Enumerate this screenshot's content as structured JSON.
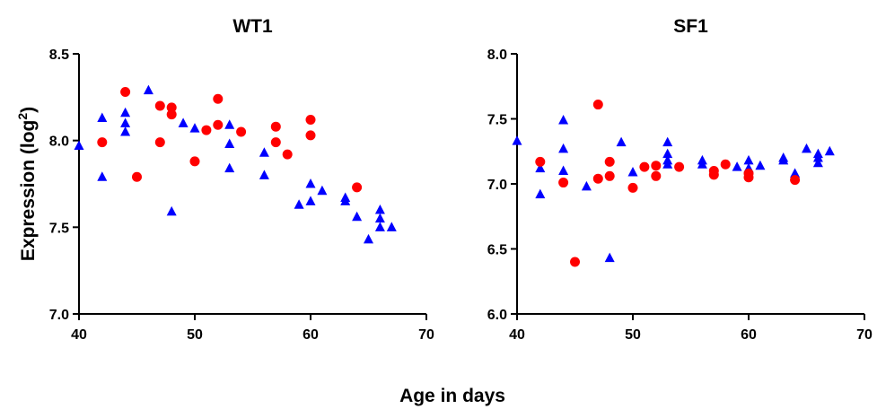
{
  "figure": {
    "xlabel": "Age in days",
    "ylabel": "Expression (log",
    "ylabel_sup": "2",
    "ylabel_close": ")"
  },
  "series_styles": {
    "triangle": {
      "color": "#0000ff",
      "marker": "triangle"
    },
    "circle": {
      "color": "#ff0000",
      "marker": "circle"
    }
  },
  "chart_data": [
    {
      "type": "scatter",
      "title": "WT1",
      "xlim": [
        40,
        70
      ],
      "ylim": [
        7.0,
        8.5
      ],
      "xticks": [
        40,
        50,
        60,
        70
      ],
      "xtick_labels": [
        "40",
        "50",
        "60",
        "70"
      ],
      "yticks": [
        7.0,
        7.5,
        8.0,
        8.5
      ],
      "ytick_labels": [
        "7.0",
        "7.5",
        "8.0",
        "8.5"
      ],
      "series": [
        {
          "marker": "triangle",
          "color": "#0000ff",
          "points": [
            [
              40,
              7.97
            ],
            [
              42,
              8.13
            ],
            [
              42,
              7.79
            ],
            [
              44,
              8.16
            ],
            [
              44,
              8.1
            ],
            [
              44,
              8.05
            ],
            [
              46,
              8.29
            ],
            [
              48,
              7.59
            ],
            [
              49,
              8.1
            ],
            [
              50,
              8.07
            ],
            [
              53,
              8.09
            ],
            [
              53,
              7.98
            ],
            [
              53,
              7.84
            ],
            [
              56,
              7.93
            ],
            [
              56,
              7.8
            ],
            [
              59,
              7.63
            ],
            [
              60,
              7.75
            ],
            [
              60,
              7.65
            ],
            [
              61,
              7.71
            ],
            [
              63,
              7.67
            ],
            [
              63,
              7.65
            ],
            [
              64,
              7.56
            ],
            [
              65,
              7.43
            ],
            [
              66,
              7.6
            ],
            [
              66,
              7.55
            ],
            [
              66,
              7.5
            ],
            [
              67,
              7.5
            ]
          ]
        },
        {
          "marker": "circle",
          "color": "#ff0000",
          "points": [
            [
              42,
              7.99
            ],
            [
              44,
              8.28
            ],
            [
              45,
              7.79
            ],
            [
              47,
              8.2
            ],
            [
              47,
              7.99
            ],
            [
              48,
              8.19
            ],
            [
              48,
              8.15
            ],
            [
              50,
              7.88
            ],
            [
              51,
              8.06
            ],
            [
              52,
              8.24
            ],
            [
              52,
              8.09
            ],
            [
              54,
              8.05
            ],
            [
              57,
              8.08
            ],
            [
              57,
              7.99
            ],
            [
              58,
              7.92
            ],
            [
              60,
              8.12
            ],
            [
              60,
              8.03
            ],
            [
              64,
              7.73
            ]
          ]
        }
      ]
    },
    {
      "type": "scatter",
      "title": "SF1",
      "xlim": [
        40,
        70
      ],
      "ylim": [
        6.0,
        8.0
      ],
      "xticks": [
        40,
        50,
        60,
        70
      ],
      "xtick_labels": [
        "40",
        "50",
        "60",
        "70"
      ],
      "yticks": [
        6.0,
        6.5,
        7.0,
        7.5,
        8.0
      ],
      "ytick_labels": [
        "6.0",
        "6.5",
        "7.0",
        "7.5",
        "8.0"
      ],
      "series": [
        {
          "marker": "triangle",
          "color": "#0000ff",
          "points": [
            [
              40,
              7.33
            ],
            [
              42,
              7.12
            ],
            [
              42,
              6.92
            ],
            [
              44,
              7.49
            ],
            [
              44,
              7.27
            ],
            [
              44,
              7.1
            ],
            [
              46,
              6.98
            ],
            [
              48,
              6.43
            ],
            [
              49,
              7.32
            ],
            [
              50,
              7.09
            ],
            [
              53,
              7.32
            ],
            [
              53,
              7.23
            ],
            [
              53,
              7.18
            ],
            [
              53,
              7.15
            ],
            [
              56,
              7.18
            ],
            [
              56,
              7.15
            ],
            [
              59,
              7.13
            ],
            [
              60,
              7.18
            ],
            [
              60,
              7.12
            ],
            [
              61,
              7.14
            ],
            [
              63,
              7.2
            ],
            [
              63,
              7.18
            ],
            [
              64,
              7.08
            ],
            [
              65,
              7.27
            ],
            [
              66,
              7.23
            ],
            [
              66,
              7.2
            ],
            [
              66,
              7.16
            ],
            [
              67,
              7.25
            ]
          ]
        },
        {
          "marker": "circle",
          "color": "#ff0000",
          "points": [
            [
              42,
              7.17
            ],
            [
              44,
              7.01
            ],
            [
              45,
              6.4
            ],
            [
              47,
              7.61
            ],
            [
              47,
              7.04
            ],
            [
              48,
              7.17
            ],
            [
              48,
              7.06
            ],
            [
              50,
              6.97
            ],
            [
              51,
              7.13
            ],
            [
              52,
              7.14
            ],
            [
              52,
              7.06
            ],
            [
              54,
              7.13
            ],
            [
              57,
              7.1
            ],
            [
              57,
              7.07
            ],
            [
              58,
              7.15
            ],
            [
              60,
              7.08
            ],
            [
              60,
              7.05
            ],
            [
              64,
              7.03
            ]
          ]
        }
      ]
    }
  ]
}
